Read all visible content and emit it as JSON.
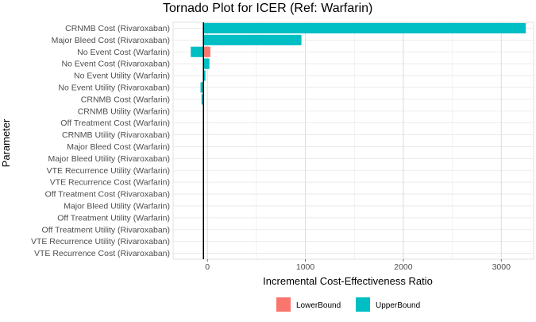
{
  "chart_data": {
    "type": "bar",
    "orientation": "horizontal",
    "title": "Tornado Plot for ICER (Ref: Warfarin)",
    "xlabel": "Incremental Cost-Effectiveness Ratio",
    "ylabel": "Parameter",
    "xlim": [
      -350,
      3330
    ],
    "xticks": [
      0,
      1000,
      2000,
      3000
    ],
    "reference_line": -40,
    "grid": true,
    "legend_position": "bottom",
    "categories": [
      "CRNMB Cost (Rivaroxaban)",
      "Major Bleed Cost (Rivaroxaban)",
      "No Event Cost (Warfarin)",
      "No Event Cost (Rivaroxaban)",
      "No Event Utility (Warfarin)",
      "No Event Utility (Rivaroxaban)",
      "CRNMB Cost (Warfarin)",
      "CRNMB Utility (Warfarin)",
      "Off Treatment Cost (Warfarin)",
      "CRNMB Utility (Rivaroxaban)",
      "Major Bleed Cost (Warfarin)",
      "Major Bleed Utility  (Rivaroxaban)",
      "VTE Recurrence Utility (Warfarin)",
      "VTE Recurrence Cost (Warfarin)",
      "Off Treatment Cost (Rivaroxaban)",
      "Major Bleed Utility (Warfarin)",
      "Off Treatment Utility (Warfarin)",
      "Off Treatment Utility (Rivaroxaban)",
      "VTE Recurrence Utility (Rivaroxaban)",
      "VTE Recurrence Cost (Rivaroxaban)"
    ],
    "series": [
      {
        "name": "LowerBound",
        "color": "#F8766D",
        "values": [
          null,
          null,
          30,
          20,
          null,
          -55,
          null,
          null,
          null,
          null,
          null,
          null,
          null,
          null,
          null,
          null,
          null,
          null,
          null,
          null
        ]
      },
      {
        "name": "UpperBound",
        "color": "#00BFC4",
        "values": [
          3250,
          960,
          -170,
          20,
          -20,
          -70,
          -60,
          null,
          null,
          null,
          null,
          null,
          null,
          null,
          null,
          null,
          null,
          null,
          null,
          null
        ]
      }
    ]
  }
}
